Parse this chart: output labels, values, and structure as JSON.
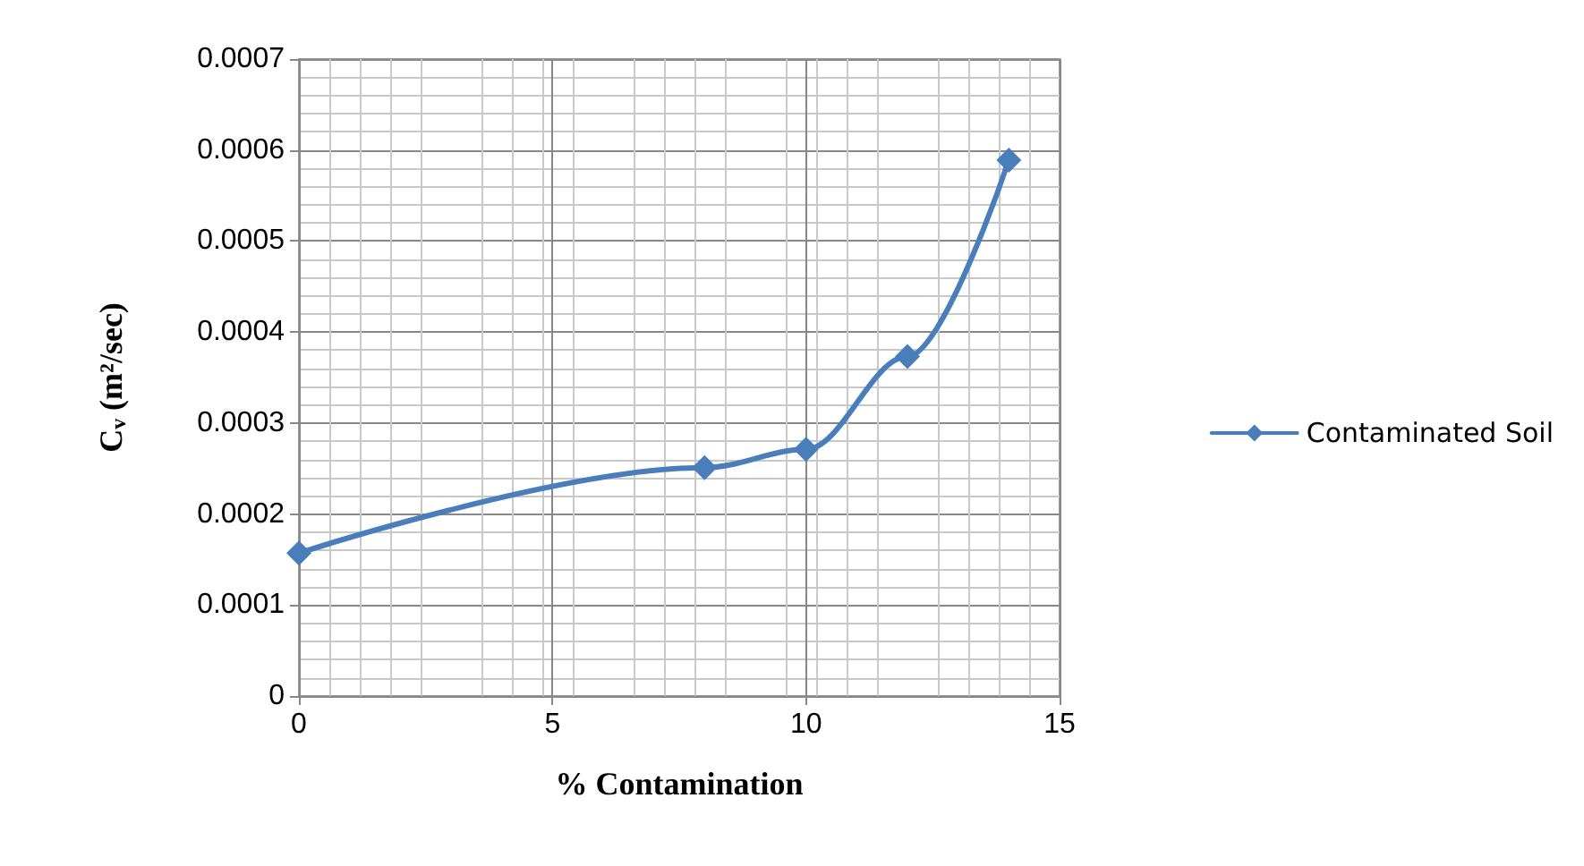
{
  "chart_data": {
    "type": "line",
    "xlabel": "% Contamination",
    "ylabel": "C$_{v}$ (m²/sec)",
    "x": [
      0,
      8,
      10,
      12,
      14
    ],
    "series": [
      {
        "name": "Contaminated Soil",
        "color": "#4a7ebb",
        "values": [
          0.000157,
          0.000251,
          0.000271,
          0.000373,
          0.000589
        ]
      }
    ],
    "xlim": [
      0,
      15
    ],
    "xticks": [
      0,
      5,
      10,
      15
    ],
    "ylim": [
      0,
      0.0007
    ],
    "yticks": [
      0,
      0.0001,
      0.0002,
      0.0003,
      0.0004,
      0.0005,
      0.0006,
      0.0007
    ],
    "grid": true,
    "legend": "right",
    "marker": "diamond",
    "line_style": "solid"
  }
}
